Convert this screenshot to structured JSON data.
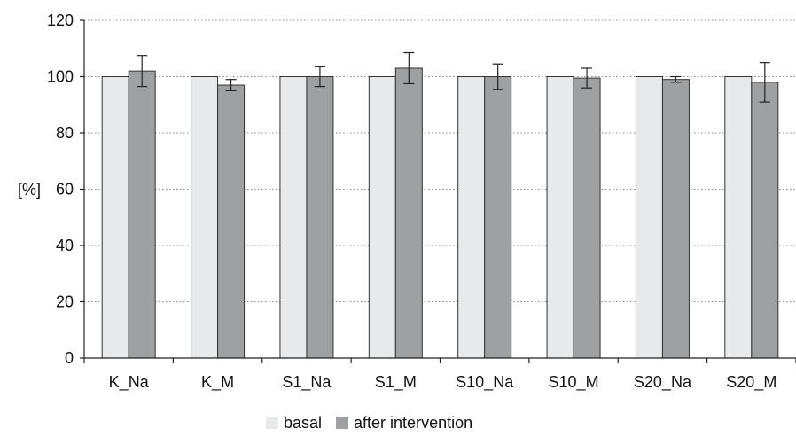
{
  "chart_data": {
    "type": "bar",
    "categories": [
      "K_Na",
      "K_M",
      "S1_Na",
      "S1_M",
      "S10_Na",
      "S10_M",
      "S20_Na",
      "S20_M"
    ],
    "series": [
      {
        "name": "basal",
        "values": [
          100,
          100,
          100,
          100,
          100,
          100,
          100,
          100
        ],
        "error": [
          0,
          0,
          0,
          0,
          0,
          0,
          0,
          0
        ],
        "color": "#e8e9ea"
      },
      {
        "name": "after intervention",
        "values": [
          102,
          97,
          100,
          103,
          100,
          99.5,
          99,
          98
        ],
        "error": [
          5.5,
          2,
          3.5,
          5.5,
          4.5,
          3.5,
          1,
          7
        ],
        "color": "#9fa0a2"
      }
    ],
    "ylabel": "[%]",
    "ylim": [
      0,
      120
    ],
    "yticks": [
      0,
      20,
      40,
      60,
      80,
      100,
      120
    ],
    "grid": "horizontal dotted",
    "legend": "bottom-center"
  }
}
